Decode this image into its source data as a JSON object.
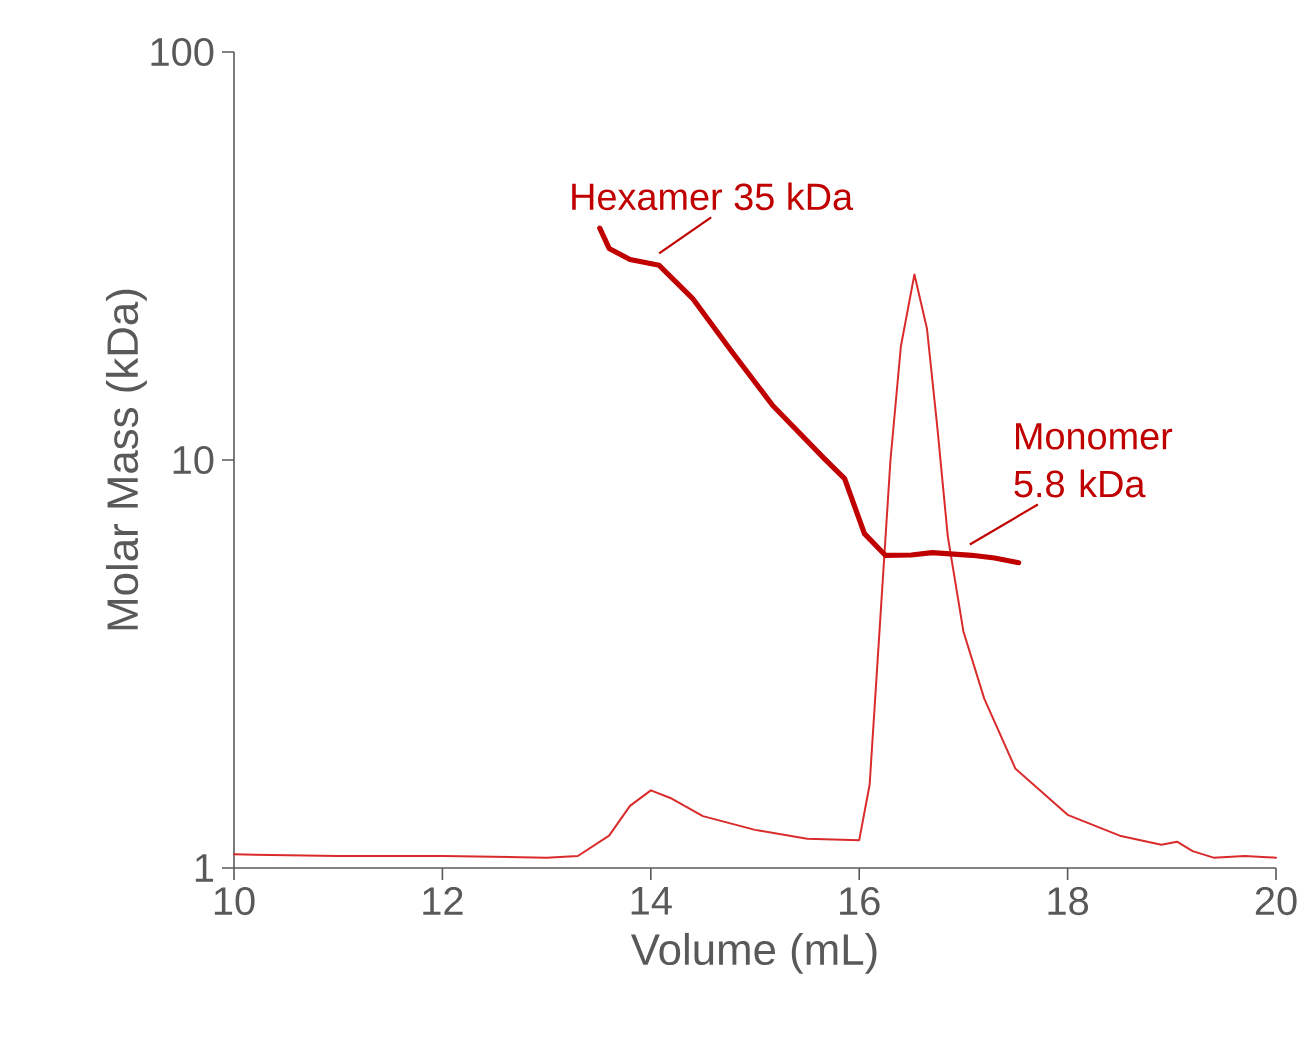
{
  "chart_data": {
    "type": "line",
    "xlabel": "Volume (mL)",
    "ylabel": "Molar Mass (kDa)",
    "log": "y",
    "xlim": [
      10,
      20
    ],
    "ylim": [
      1,
      100
    ],
    "xticks": [
      10,
      12,
      14,
      16,
      18,
      20
    ],
    "yticks": [
      1,
      10,
      100
    ],
    "marker": "none",
    "series": [
      {
        "color": "#d92b2b",
        "x": [
          10,
          11,
          12,
          13,
          13.3,
          13.6,
          13.8,
          14.0,
          14.2,
          14.5,
          15.0,
          15.5,
          16.0,
          16.1,
          16.2,
          16.3,
          16.4,
          16.53,
          16.65,
          16.75,
          16.85,
          17.0,
          17.2,
          17.5,
          18.0,
          18.5,
          18.9,
          19.05,
          19.2,
          19.4,
          19.7,
          20
        ],
        "values": [
          1.08,
          1.07,
          1.07,
          1.06,
          1.07,
          1.2,
          1.42,
          1.55,
          1.48,
          1.34,
          1.24,
          1.18,
          1.17,
          1.6,
          4.0,
          10,
          19,
          28.5,
          21,
          12,
          6.5,
          3.8,
          2.6,
          1.75,
          1.35,
          1.2,
          1.14,
          1.16,
          1.1,
          1.06,
          1.07,
          1.06
        ]
      },
      {
        "color": "#c00000",
        "x": [
          13.51,
          13.6,
          13.8,
          14.08,
          14.4,
          14.78,
          15.17,
          15.67,
          15.86,
          16.05,
          16.25,
          16.5,
          16.7,
          17.08,
          17.3,
          17.53
        ],
        "values": [
          37,
          33,
          31,
          30,
          24.9,
          18.4,
          13.6,
          10.05,
          9.0,
          6.6,
          5.84,
          5.85,
          5.93,
          5.84,
          5.75,
          5.6
        ]
      }
    ],
    "annotations": [
      {
        "text": "Hexamer 35 kDa",
        "x": 14.08,
        "y": 30
      },
      {
        "text": "Monomer 5.8 kDa",
        "x": 17.1,
        "y": 5.8
      }
    ]
  }
}
